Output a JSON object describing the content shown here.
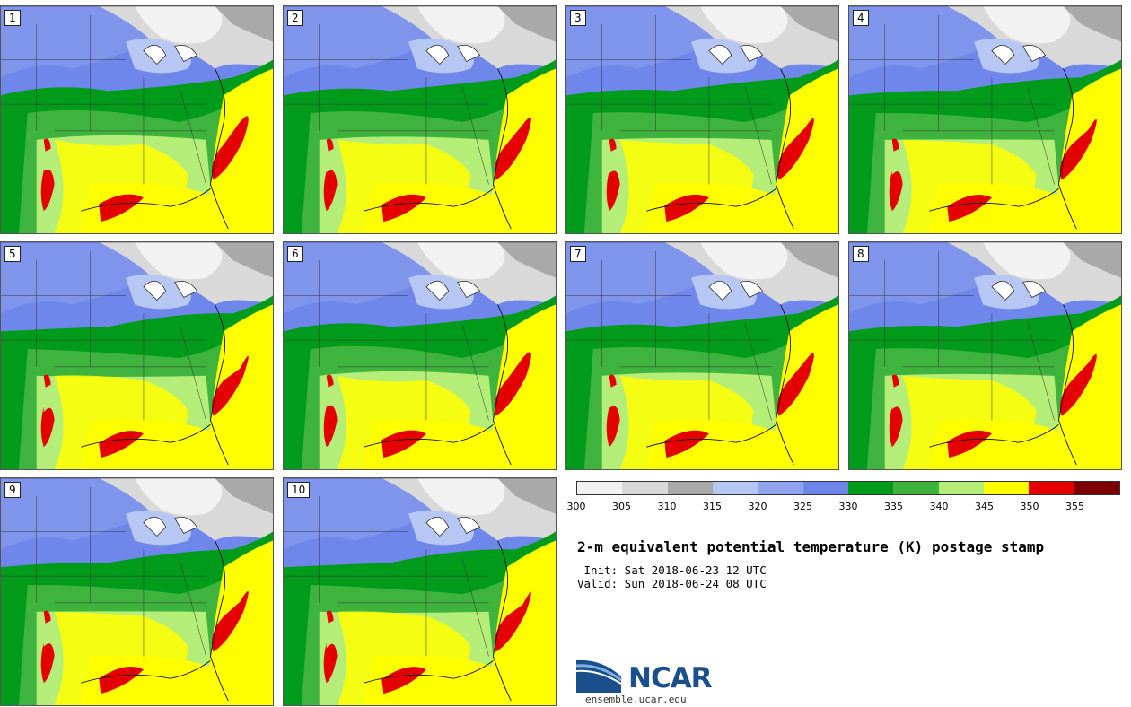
{
  "panels": [
    "1",
    "2",
    "3",
    "4",
    "5",
    "6",
    "7",
    "8",
    "9",
    "10"
  ],
  "colorbar": {
    "colors": [
      "#f2f2f2",
      "#d9d9d9",
      "#a9a9a9",
      "#b7c7f4",
      "#8fa5ef",
      "#6f86ea",
      "#019b1c",
      "#3eb33e",
      "#b4ee78",
      "#ffff00",
      "#e50000",
      "#7d0000"
    ],
    "ticks": [
      "300",
      "305",
      "310",
      "315",
      "320",
      "325",
      "330",
      "335",
      "340",
      "345",
      "350",
      "355"
    ]
  },
  "title": "2-m equivalent potential temperature (K) postage stamp",
  "init": " Init: Sat 2018-06-23 12 UTC",
  "valid": "Valid: Sun 2018-06-24 08 UTC",
  "logo_text": "NCAR",
  "url": "ensemble.ucar.edu"
}
